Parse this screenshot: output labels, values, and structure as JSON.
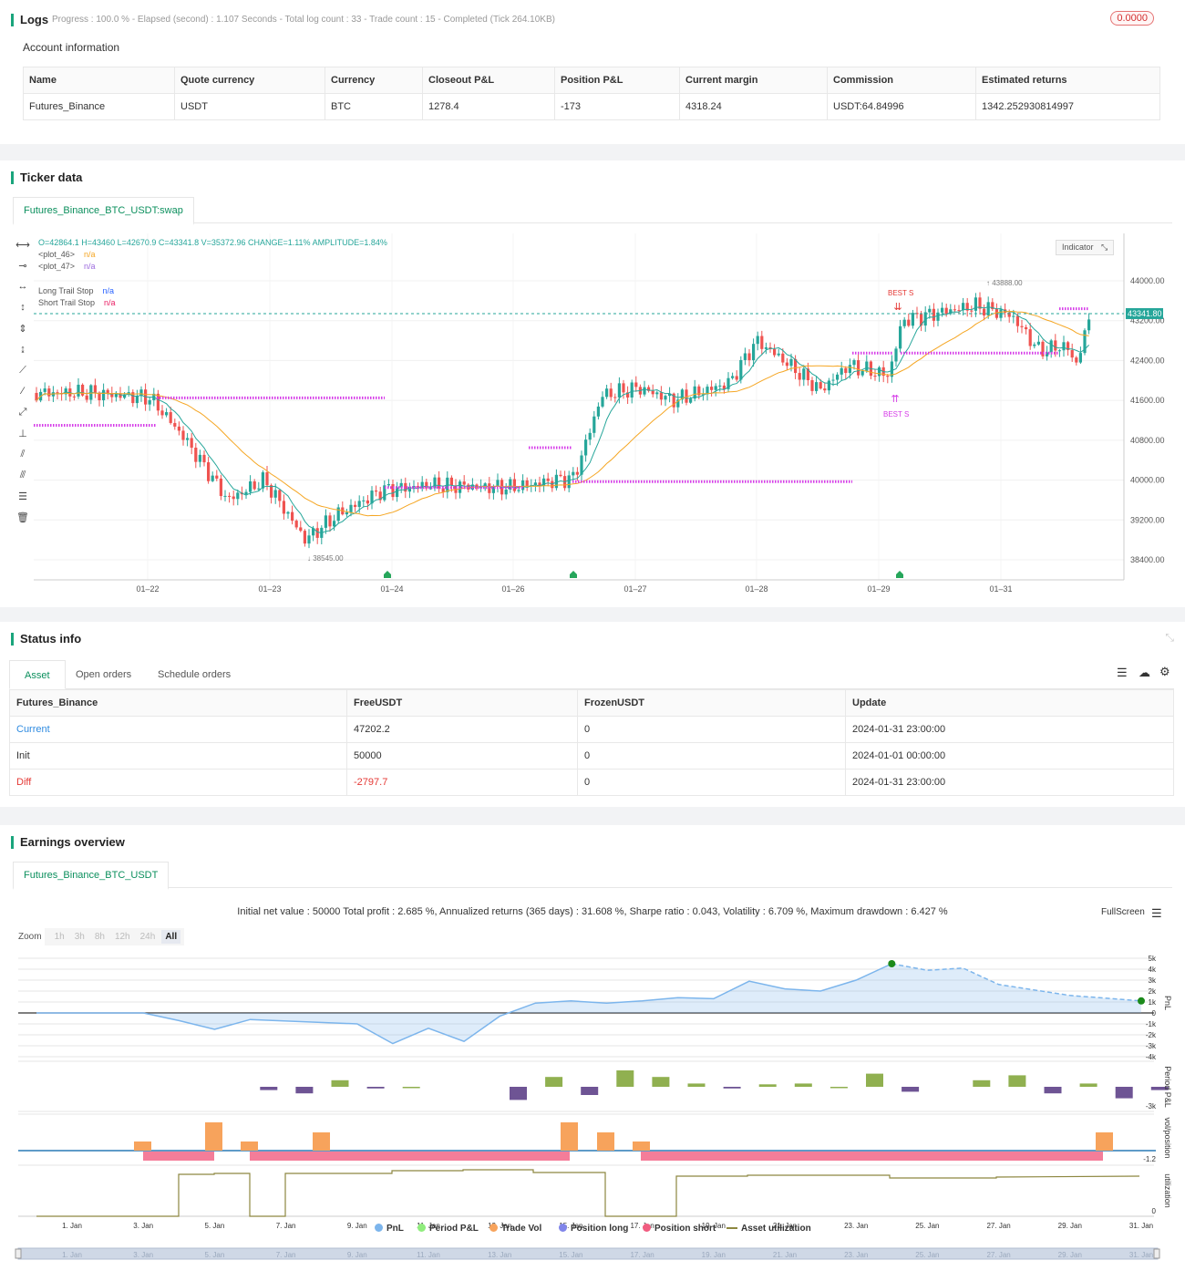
{
  "logs": {
    "title": "Logs",
    "progress": "Progress : 100.0 % - Elapsed (second) : 1.107  Seconds - Total log count : 33 - Trade count : 15 - Completed (Tick 264.10KB)",
    "badge": "0.0000",
    "account_heading": "Account information",
    "columns": [
      "Name",
      "Quote currency",
      "Currency",
      "Closeout P&L",
      "Position P&L",
      "Current margin",
      "Commission",
      "Estimated returns"
    ],
    "row": [
      "Futures_Binance",
      "USDT",
      "BTC",
      "1278.4",
      "-173",
      "4318.24",
      "USDT:64.84996",
      "1342.252930814997"
    ]
  },
  "ticker": {
    "title": "Ticker data",
    "tab": "Futures_Binance_BTC_USDT:swap",
    "ohlc": "O=42864.1 H=43460 L=42670.9 C=43341.8 V=35372.96 CHANGE=1.11% AMPLITUDE=1.84%",
    "legend": [
      {
        "label": "<plot_46>",
        "value": "n/a",
        "color": "#f5a623"
      },
      {
        "label": "<plot_47>",
        "value": "n/a",
        "color": "#9c6ade"
      },
      {
        "label": "Long Trail Stop",
        "value": "n/a",
        "color": "#2962ff"
      },
      {
        "label": "Short Trail Stop",
        "value": "n/a",
        "color": "#e91e63"
      }
    ],
    "indicator_button": "Indicator",
    "price_ticks": [
      "44000.00",
      "43200.00",
      "42400.00",
      "41600.00",
      "40800.00",
      "40000.00",
      "39200.00",
      "38400.00"
    ],
    "date_ticks": [
      "01–22",
      "01–23",
      "01–24",
      "01–26",
      "01–27",
      "01–28",
      "01–29",
      "01–31"
    ],
    "last_price": "43341.80",
    "high_label": "43888.00",
    "low_label": "38545.00",
    "signal_labels": [
      "BEST S",
      "BEST S"
    ]
  },
  "status": {
    "title": "Status info",
    "tabs": [
      "Asset",
      "Open orders",
      "Schedule orders"
    ],
    "columns": [
      "Futures_Binance",
      "FreeUSDT",
      "FrozenUSDT",
      "Update"
    ],
    "rows": [
      [
        "Current",
        "47202.2",
        "0",
        "2024-01-31 23:00:00"
      ],
      [
        "Init",
        "50000",
        "0",
        "2024-01-01 00:00:00"
      ],
      [
        "Diff",
        "-2797.7",
        "0",
        "2024-01-31 23:00:00"
      ]
    ]
  },
  "earnings": {
    "title": "Earnings overview",
    "tab": "Futures_Binance_BTC_USDT",
    "summary": "Initial net value : 50000  Total profit : 2.685 %, Annualized returns (365 days) : 31.608 %, Sharpe ratio : 0.043, Volatility : 6.709 %, Maximum drawdown : 6.427 %",
    "zoom_label": "Zoom",
    "zoom_options": [
      "1h",
      "3h",
      "8h",
      "12h",
      "24h",
      "All"
    ],
    "fullscreen": "FullScreen",
    "pnl_ticks": [
      "5k",
      "4k",
      "3k",
      "2k",
      "1k",
      "0",
      "-1k",
      "-2k",
      "-3k",
      "-4k"
    ],
    "axis_titles": [
      "PnL",
      "Period P&L",
      "vol/position",
      "utilization"
    ],
    "period_tick": "-3k",
    "vol_tick": "-1.2",
    "util_tick": "0",
    "date_ticks": [
      "1. Jan",
      "3. Jan",
      "5. Jan",
      "7. Jan",
      "9. Jan",
      "11. Jan",
      "13. Jan",
      "15. Jan",
      "17. Jan",
      "19. Jan",
      "21. Jan",
      "23. Jan",
      "25. Jan",
      "27. Jan",
      "29. Jan",
      "31. Jan"
    ],
    "legend": [
      {
        "label": "PnL",
        "color": "#7cb5ec"
      },
      {
        "label": "Period P&L",
        "color": "#90ed7d"
      },
      {
        "label": "Trade Vol",
        "color": "#f7a35c"
      },
      {
        "label": "Position long",
        "color": "#8085e9"
      },
      {
        "label": "Position short",
        "color": "#f15c80"
      },
      {
        "label": "Asset utilization",
        "color": "#8d8740"
      }
    ],
    "chart_data": {
      "type": "area",
      "x": [
        "1. Jan",
        "3. Jan",
        "4. Jan",
        "5. Jan",
        "6. Jan",
        "9. Jan",
        "10. Jan",
        "11. Jan",
        "12. Jan",
        "13. Jan",
        "14. Jan",
        "15. Jan",
        "16. Jan",
        "17. Jan",
        "18. Jan",
        "19. Jan",
        "20. Jan",
        "21. Jan",
        "22. Jan",
        "23. Jan",
        "24. Jan",
        "25. Jan",
        "26. Jan",
        "27. Jan",
        "29. Jan",
        "31. Jan"
      ],
      "series": [
        {
          "name": "PnL",
          "values": [
            0,
            0,
            -0.7,
            -1.5,
            -0.6,
            -1.0,
            -2.8,
            -1.4,
            -2.6,
            -0.3,
            0.9,
            1.1,
            0.9,
            1.1,
            1.4,
            1.3,
            2.9,
            2.2,
            2.0,
            3.0,
            4.5,
            3.9,
            4.1,
            2.6,
            1.6,
            1.1
          ]
        }
      ],
      "ylim": [
        -4,
        5
      ]
    }
  }
}
